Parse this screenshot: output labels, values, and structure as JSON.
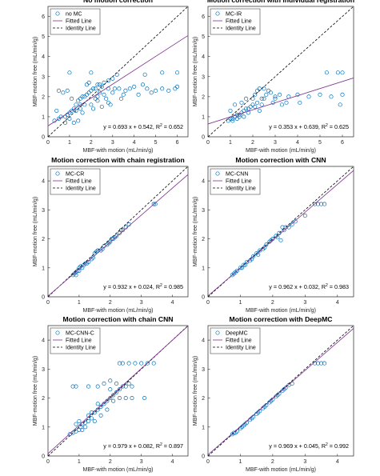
{
  "colors": {
    "points": "#0072BD",
    "fit": "#7E2F8E",
    "identity": "#000000",
    "axis": "#262626"
  },
  "chart_data": [
    {
      "type": "scatter",
      "title": "No motion correction",
      "xlabel": "MBF-with motion (mL/min/g)",
      "ylabel": "MBF-motion free (mL/min/g)",
      "xlim": [
        0,
        6.5
      ],
      "ylim": [
        0,
        6.5
      ],
      "xticks": [
        "0",
        "1",
        "2",
        "3",
        "4",
        "5",
        "6"
      ],
      "yticks": [
        "0",
        "1",
        "2",
        "3",
        "4",
        "5",
        "6"
      ],
      "grid": false,
      "legend_position": "top-left",
      "legend": [
        "no MC",
        "Fitted Line",
        "Identity Line"
      ],
      "fit": {
        "slope": 0.693,
        "intercept": 0.542
      },
      "equation": "y = 0.693 x + 0.542,  R",
      "r2": "= 0.652",
      "points": [
        [
          0.3,
          0.8
        ],
        [
          0.5,
          0.9
        ],
        [
          0.6,
          1.0
        ],
        [
          0.8,
          1.0
        ],
        [
          0.9,
          1.1
        ],
        [
          1.0,
          1.2
        ],
        [
          1.1,
          1.3
        ],
        [
          1.2,
          1.4
        ],
        [
          1.3,
          1.6
        ],
        [
          1.4,
          1.8
        ],
        [
          1.5,
          1.9
        ],
        [
          1.6,
          2.0
        ],
        [
          1.7,
          2.0
        ],
        [
          1.8,
          2.1
        ],
        [
          1.9,
          2.2
        ],
        [
          2.0,
          2.3
        ],
        [
          2.1,
          2.4
        ],
        [
          2.2,
          2.4
        ],
        [
          2.3,
          2.6
        ],
        [
          2.4,
          2.6
        ],
        [
          2.6,
          2.7
        ],
        [
          2.8,
          2.8
        ],
        [
          3.0,
          2.9
        ],
        [
          0.4,
          1.3
        ],
        [
          0.5,
          2.3
        ],
        [
          0.7,
          2.2
        ],
        [
          0.9,
          2.3
        ],
        [
          1.1,
          1.9
        ],
        [
          1.2,
          0.7
        ],
        [
          1.4,
          0.8
        ],
        [
          1.5,
          1.4
        ],
        [
          1.6,
          1.2
        ],
        [
          1.7,
          1.6
        ],
        [
          1.8,
          2.6
        ],
        [
          1.9,
          2.7
        ],
        [
          2.0,
          1.6
        ],
        [
          2.1,
          1.4
        ],
        [
          2.3,
          1.8
        ],
        [
          2.5,
          1.5
        ],
        [
          2.6,
          2.1
        ],
        [
          2.7,
          1.9
        ],
        [
          2.8,
          2.4
        ],
        [
          2.9,
          1.6
        ],
        [
          3.0,
          2.2
        ],
        [
          3.1,
          2.4
        ],
        [
          3.3,
          2.4
        ],
        [
          3.5,
          2.1
        ],
        [
          3.6,
          2.3
        ],
        [
          3.8,
          2.4
        ],
        [
          4.0,
          2.5
        ],
        [
          4.2,
          2.1
        ],
        [
          4.4,
          2.6
        ],
        [
          4.6,
          2.4
        ],
        [
          4.8,
          2.2
        ],
        [
          5.0,
          2.3
        ],
        [
          5.3,
          2.4
        ],
        [
          5.6,
          2.3
        ],
        [
          5.9,
          2.4
        ],
        [
          6.0,
          2.5
        ],
        [
          1.0,
          3.2
        ],
        [
          2.0,
          3.2
        ],
        [
          3.2,
          3.1
        ],
        [
          4.5,
          3.1
        ],
        [
          5.3,
          3.2
        ],
        [
          6.0,
          3.2
        ],
        [
          2.3,
          2.0
        ],
        [
          2.5,
          2.5
        ],
        [
          2.8,
          1.7
        ],
        [
          1.3,
          1.3
        ],
        [
          1.5,
          1.6
        ],
        [
          0.8,
          0.7
        ],
        [
          1.0,
          0.9
        ],
        [
          2.2,
          1.9
        ],
        [
          2.4,
          2.2
        ],
        [
          3.4,
          1.9
        ]
      ]
    },
    {
      "type": "scatter",
      "title": "Motion correction with individual registration",
      "xlabel": "MBF-with motion (mL/min/g)",
      "ylabel": "MBF-motion free (mL/min/g)",
      "xlim": [
        0,
        6.5
      ],
      "ylim": [
        0,
        6.5
      ],
      "xticks": [
        "0",
        "1",
        "2",
        "3",
        "4",
        "5",
        "6"
      ],
      "yticks": [
        "0",
        "1",
        "2",
        "3",
        "4",
        "5",
        "6"
      ],
      "grid": false,
      "legend_position": "top-left",
      "legend": [
        "MC-IR",
        "Fitted Line",
        "Identity Line"
      ],
      "fit": {
        "slope": 0.353,
        "intercept": 0.639
      },
      "equation": "y = 0.353 x + 0.639,  R",
      "r2": "= 0.625",
      "points": [
        [
          0.9,
          0.8
        ],
        [
          1.0,
          0.9
        ],
        [
          1.1,
          0.9
        ],
        [
          1.2,
          1.0
        ],
        [
          1.3,
          1.1
        ],
        [
          1.4,
          1.1
        ],
        [
          1.5,
          1.2
        ],
        [
          1.6,
          1.3
        ],
        [
          1.7,
          1.4
        ],
        [
          1.8,
          1.4
        ],
        [
          1.9,
          1.5
        ],
        [
          2.0,
          1.6
        ],
        [
          2.2,
          1.7
        ],
        [
          2.4,
          1.9
        ],
        [
          2.6,
          2.1
        ],
        [
          2.8,
          2.2
        ],
        [
          3.0,
          2.0
        ],
        [
          1.0,
          1.3
        ],
        [
          1.2,
          1.6
        ],
        [
          1.5,
          1.7
        ],
        [
          1.7,
          1.9
        ],
        [
          2.0,
          1.9
        ],
        [
          2.1,
          2.1
        ],
        [
          2.2,
          2.3
        ],
        [
          2.3,
          2.4
        ],
        [
          2.5,
          2.4
        ],
        [
          2.7,
          2.3
        ],
        [
          3.2,
          2.1
        ],
        [
          3.6,
          2.0
        ],
        [
          4.0,
          2.1
        ],
        [
          4.5,
          2.0
        ],
        [
          5.0,
          2.1
        ],
        [
          5.5,
          2.0
        ],
        [
          6.0,
          2.1
        ],
        [
          2.4,
          1.6
        ],
        [
          2.9,
          1.7
        ],
        [
          3.3,
          1.6
        ],
        [
          1.1,
          0.8
        ],
        [
          1.4,
          1.0
        ],
        [
          1.8,
          1.2
        ],
        [
          2.1,
          1.5
        ],
        [
          2.5,
          1.9
        ],
        [
          3.0,
          1.9
        ],
        [
          5.3,
          3.2
        ],
        [
          5.8,
          3.2
        ],
        [
          6.0,
          3.2
        ],
        [
          4.1,
          1.7
        ],
        [
          5.9,
          1.6
        ],
        [
          3.5,
          1.7
        ],
        [
          2.3,
          1.3
        ],
        [
          1.3,
          0.9
        ],
        [
          1.6,
          1.0
        ]
      ]
    },
    {
      "type": "scatter",
      "title": "Motion correction with chain registration",
      "xlabel": "MBF-with motion (mL/min/g)",
      "ylabel": "MBF-motion free (mL/min/g)",
      "xlim": [
        0,
        4.5
      ],
      "ylim": [
        0,
        4.5
      ],
      "xticks": [
        "0",
        "1",
        "2",
        "3",
        "4"
      ],
      "yticks": [
        "0",
        "1",
        "2",
        "3",
        "4"
      ],
      "grid": false,
      "legend_position": "top-left",
      "legend": [
        "MC-CR",
        "Fitted Line",
        "Identity Line"
      ],
      "fit": {
        "slope": 0.932,
        "intercept": 0.024
      },
      "equation": "y = 0.932 x + 0.024,  R",
      "r2": "= 0.985",
      "points": [
        [
          0.8,
          0.75
        ],
        [
          0.85,
          0.8
        ],
        [
          0.9,
          0.85
        ],
        [
          0.95,
          0.9
        ],
        [
          1.0,
          1.0
        ],
        [
          1.05,
          1.05
        ],
        [
          1.1,
          1.0
        ],
        [
          1.15,
          1.1
        ],
        [
          1.2,
          1.15
        ],
        [
          1.3,
          1.2
        ],
        [
          1.4,
          1.3
        ],
        [
          1.5,
          1.5
        ],
        [
          1.55,
          1.55
        ],
        [
          1.6,
          1.6
        ],
        [
          1.7,
          1.6
        ],
        [
          1.8,
          1.75
        ],
        [
          1.9,
          1.8
        ],
        [
          2.0,
          1.9
        ],
        [
          2.05,
          2.0
        ],
        [
          2.1,
          2.0
        ],
        [
          2.2,
          2.1
        ],
        [
          2.3,
          2.2
        ],
        [
          2.4,
          2.3
        ],
        [
          2.5,
          2.4
        ],
        [
          2.6,
          2.5
        ],
        [
          3.4,
          3.2
        ],
        [
          3.45,
          3.2
        ],
        [
          1.25,
          1.15
        ],
        [
          1.45,
          1.35
        ],
        [
          1.75,
          1.65
        ],
        [
          1.95,
          1.85
        ],
        [
          2.15,
          2.05
        ],
        [
          2.35,
          2.3
        ],
        [
          0.9,
          0.75
        ],
        [
          1.0,
          0.9
        ]
      ]
    },
    {
      "type": "scatter",
      "title": "Motion correction with CNN",
      "xlabel": "MBF-with motion (mL/min/g)",
      "ylabel": "MBF-motion free (mL/min/g)",
      "xlim": [
        0,
        4.5
      ],
      "ylim": [
        0,
        4.5
      ],
      "xticks": [
        "0",
        "1",
        "2",
        "3",
        "4"
      ],
      "yticks": [
        "0",
        "1",
        "2",
        "3",
        "4"
      ],
      "grid": false,
      "legend_position": "top-left",
      "legend": [
        "MC-CNN",
        "Fitted Line",
        "Identity Line"
      ],
      "fit": {
        "slope": 0.962,
        "intercept": 0.032
      },
      "equation": "y = 0.962 x + 0.032,  R",
      "r2": "= 0.983",
      "points": [
        [
          0.75,
          0.75
        ],
        [
          0.8,
          0.8
        ],
        [
          0.85,
          0.85
        ],
        [
          0.9,
          0.9
        ],
        [
          1.0,
          1.0
        ],
        [
          1.05,
          1.0
        ],
        [
          1.1,
          1.1
        ],
        [
          1.2,
          1.2
        ],
        [
          1.3,
          1.25
        ],
        [
          1.4,
          1.4
        ],
        [
          1.5,
          1.5
        ],
        [
          1.6,
          1.6
        ],
        [
          1.7,
          1.65
        ],
        [
          1.8,
          1.8
        ],
        [
          1.9,
          1.9
        ],
        [
          2.0,
          2.0
        ],
        [
          2.1,
          2.1
        ],
        [
          2.2,
          2.2
        ],
        [
          2.3,
          2.4
        ],
        [
          2.4,
          2.4
        ],
        [
          2.5,
          2.4
        ],
        [
          2.6,
          2.5
        ],
        [
          2.7,
          2.6
        ],
        [
          3.0,
          2.8
        ],
        [
          3.3,
          3.2
        ],
        [
          3.4,
          3.2
        ],
        [
          3.5,
          3.2
        ],
        [
          3.6,
          3.2
        ],
        [
          1.15,
          1.1
        ],
        [
          1.35,
          1.3
        ],
        [
          1.55,
          1.45
        ],
        [
          1.75,
          1.7
        ],
        [
          1.95,
          1.95
        ],
        [
          2.15,
          2.05
        ],
        [
          2.35,
          2.3
        ],
        [
          2.25,
          1.95
        ]
      ]
    },
    {
      "type": "scatter",
      "title": "Motion correction with chain CNN",
      "xlabel": "MBF-with motion (mL/min/g)",
      "ylabel": "MBF-motion free (mL/min/g)",
      "xlim": [
        0,
        4.5
      ],
      "ylim": [
        0,
        4.5
      ],
      "xticks": [
        "0",
        "1",
        "2",
        "3",
        "4"
      ],
      "yticks": [
        "0",
        "1",
        "2",
        "3",
        "4"
      ],
      "grid": false,
      "legend_position": "top-left",
      "legend": [
        "MC-CNN-C",
        "Fitted Line",
        "Identity Line"
      ],
      "fit": {
        "slope": 0.979,
        "intercept": 0.082
      },
      "equation": "y = 0.979 x + 0.082,  R",
      "r2": "= 0.897",
      "points": [
        [
          0.7,
          0.75
        ],
        [
          0.8,
          0.8
        ],
        [
          0.9,
          0.85
        ],
        [
          1.0,
          0.9
        ],
        [
          1.05,
          1.0
        ],
        [
          1.1,
          1.1
        ],
        [
          1.2,
          1.15
        ],
        [
          1.3,
          1.2
        ],
        [
          1.4,
          1.3
        ],
        [
          1.5,
          1.5
        ],
        [
          1.6,
          1.6
        ],
        [
          1.7,
          1.7
        ],
        [
          1.8,
          1.8
        ],
        [
          1.9,
          1.9
        ],
        [
          2.0,
          2.0
        ],
        [
          2.1,
          2.1
        ],
        [
          2.2,
          2.2
        ],
        [
          2.3,
          2.3
        ],
        [
          2.4,
          2.4
        ],
        [
          2.5,
          2.4
        ],
        [
          2.6,
          2.5
        ],
        [
          2.7,
          2.4
        ],
        [
          0.8,
          2.4
        ],
        [
          0.9,
          2.4
        ],
        [
          1.3,
          2.4
        ],
        [
          1.6,
          2.4
        ],
        [
          1.8,
          2.5
        ],
        [
          2.0,
          2.6
        ],
        [
          2.2,
          2.5
        ],
        [
          2.4,
          3.2
        ],
        [
          2.6,
          3.2
        ],
        [
          2.8,
          3.2
        ],
        [
          3.0,
          3.2
        ],
        [
          3.2,
          3.2
        ],
        [
          3.4,
          3.2
        ],
        [
          2.3,
          3.2
        ],
        [
          0.9,
          1.1
        ],
        [
          1.0,
          1.2
        ],
        [
          1.2,
          1.0
        ],
        [
          1.4,
          1.5
        ],
        [
          1.5,
          1.2
        ],
        [
          1.7,
          1.4
        ],
        [
          1.9,
          1.6
        ],
        [
          2.1,
          1.9
        ],
        [
          2.3,
          2.0
        ],
        [
          2.5,
          2.0
        ],
        [
          2.7,
          2.0
        ],
        [
          3.1,
          2.0
        ],
        [
          1.1,
          0.9
        ],
        [
          1.3,
          1.4
        ],
        [
          1.6,
          1.8
        ],
        [
          2.0,
          2.3
        ]
      ]
    },
    {
      "type": "scatter",
      "title": "Motion correction with DeepMC",
      "xlabel": "MBF-with motion (mL/min/g)",
      "ylabel": "MBF-motion free (mL/min/g)",
      "xlim": [
        0,
        4.5
      ],
      "ylim": [
        0,
        4.5
      ],
      "xticks": [
        "0",
        "1",
        "2",
        "3",
        "4"
      ],
      "yticks": [
        "0",
        "1",
        "2",
        "3",
        "4"
      ],
      "grid": false,
      "legend_position": "top-left",
      "legend": [
        "DeepMC",
        "Fitted Line",
        "Identity Line"
      ],
      "fit": {
        "slope": 0.969,
        "intercept": 0.045
      },
      "equation": "y = 0.969 x + 0.045,  R",
      "r2": "= 0.992",
      "points": [
        [
          0.75,
          0.75
        ],
        [
          0.8,
          0.8
        ],
        [
          0.9,
          0.85
        ],
        [
          1.0,
          0.95
        ],
        [
          1.05,
          1.0
        ],
        [
          1.1,
          1.05
        ],
        [
          1.2,
          1.15
        ],
        [
          1.3,
          1.25
        ],
        [
          1.4,
          1.35
        ],
        [
          1.5,
          1.45
        ],
        [
          1.6,
          1.55
        ],
        [
          1.7,
          1.65
        ],
        [
          1.8,
          1.75
        ],
        [
          1.9,
          1.85
        ],
        [
          2.0,
          1.95
        ],
        [
          2.1,
          2.05
        ],
        [
          2.2,
          2.15
        ],
        [
          2.3,
          2.25
        ],
        [
          2.4,
          2.35
        ],
        [
          2.5,
          2.45
        ],
        [
          2.6,
          2.5
        ],
        [
          3.3,
          3.2
        ],
        [
          3.4,
          3.2
        ],
        [
          3.5,
          3.2
        ],
        [
          3.6,
          3.2
        ],
        [
          1.15,
          1.1
        ],
        [
          1.35,
          1.3
        ],
        [
          1.55,
          1.5
        ],
        [
          1.75,
          1.7
        ],
        [
          1.95,
          1.9
        ],
        [
          2.15,
          2.1
        ],
        [
          2.35,
          2.3
        ],
        [
          0.85,
          0.8
        ]
      ]
    }
  ]
}
